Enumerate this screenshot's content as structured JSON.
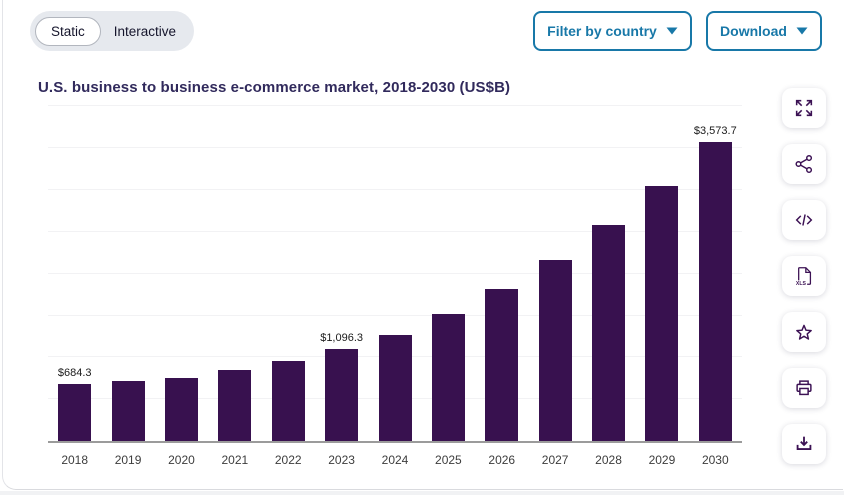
{
  "view_toggle": {
    "options": [
      {
        "label": "Static",
        "selected": true
      },
      {
        "label": "Interactive",
        "selected": false
      }
    ]
  },
  "toolbar": {
    "filter_button": "Filter by country",
    "download_button": "Download"
  },
  "chart_title": "U.S. business to business e-commerce market, 2018-2030 (US$B)",
  "side_tools": [
    {
      "id": "fullscreen",
      "label": "Expand to fullscreen"
    },
    {
      "id": "share",
      "label": "Share"
    },
    {
      "id": "embed",
      "label": "Embed code"
    },
    {
      "id": "xls",
      "label": "Download XLS",
      "badge": "XLS"
    },
    {
      "id": "favorite",
      "label": "Save to favorites"
    },
    {
      "id": "print",
      "label": "Print"
    },
    {
      "id": "download",
      "label": "Download image"
    }
  ],
  "colors": {
    "bar": "#38114f",
    "accent_blue": "#1878a8",
    "title_text": "#312a5c",
    "icon_purple": "#3c1254",
    "gridline": "#f2f2f4",
    "axis_line": "#9b9b9b",
    "tick_text": "#3d3d3d",
    "toggle_bg": "#e6e9ee"
  },
  "chart_data": {
    "type": "bar",
    "title": "U.S. business to business e-commerce market, 2018-2030 (US$B)",
    "xlabel": "",
    "ylabel": "",
    "categories": [
      "2018",
      "2019",
      "2020",
      "2021",
      "2022",
      "2023",
      "2024",
      "2025",
      "2026",
      "2027",
      "2028",
      "2029",
      "2030"
    ],
    "values": [
      684.3,
      713,
      757,
      844,
      957,
      1096.3,
      1268,
      1515,
      1815,
      2163,
      2578,
      3048,
      3573.7
    ],
    "value_labels_visible": {
      "2018": "$684.3",
      "2023": "$1,096.3",
      "2030": "$3,573.7"
    },
    "ylim": [
      0,
      4040
    ],
    "gridline_interval": 500,
    "gridline_max": 4000,
    "grid": true,
    "y_tick_labels_visible": false,
    "legend": "none",
    "bar_color": "#38114f"
  }
}
